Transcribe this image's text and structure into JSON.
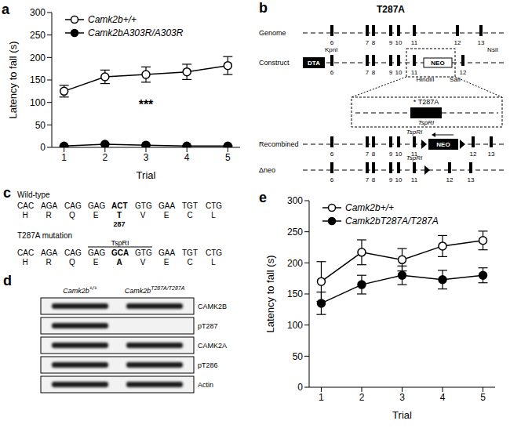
{
  "chart_data": [
    {
      "type": "line",
      "panel_label": "a",
      "xlabel": "Trial",
      "ylabel": "Latency to fall (s)",
      "x": [
        1,
        2,
        3,
        4,
        5
      ],
      "xlim": [
        0.7,
        5.3
      ],
      "xticks": [
        1,
        2,
        3,
        4,
        5
      ],
      "ylim": [
        0,
        300
      ],
      "yticks": [
        0,
        50,
        100,
        150,
        200,
        250,
        300
      ],
      "legend": "upper left",
      "series": [
        {
          "name": "Camk2b+/+",
          "color": "#000000",
          "marker": "open_circle",
          "values": [
            125,
            157,
            162,
            168,
            182
          ],
          "errors": [
            13,
            15,
            17,
            17,
            20
          ]
        },
        {
          "name": "Camk2bA303R/A303R",
          "color": "#000000",
          "marker": "filled_circle",
          "values": [
            3,
            7,
            5,
            3,
            3
          ],
          "errors": [
            1,
            1,
            1,
            1,
            1
          ]
        }
      ],
      "annotations": [
        {
          "text": "***",
          "x": 3,
          "y": 95
        }
      ]
    },
    {
      "type": "line",
      "panel_label": "e",
      "xlabel": "Trial",
      "ylabel": "Latency to fall (s)",
      "x": [
        1,
        2,
        3,
        4,
        5
      ],
      "xlim": [
        0.7,
        5.3
      ],
      "xticks": [
        1,
        2,
        3,
        4,
        5
      ],
      "ylim": [
        0,
        300
      ],
      "yticks": [
        0,
        50,
        100,
        150,
        200,
        250,
        300
      ],
      "legend": "upper left",
      "series": [
        {
          "name": "Camk2b+/+",
          "color": "#000000",
          "marker": "open_circle",
          "values": [
            170,
            217,
            205,
            227,
            236
          ],
          "errors": [
            32,
            20,
            18,
            17,
            15
          ]
        },
        {
          "name": "Camk2bT287A/T287A",
          "color": "#000000",
          "marker": "filled_circle",
          "values": [
            135,
            165,
            180,
            173,
            180
          ],
          "errors": [
            18,
            15,
            15,
            15,
            12
          ]
        }
      ],
      "annotations": []
    }
  ],
  "panel_b": {
    "panel_label": "b",
    "title": "T287A",
    "genome": {
      "label": "Genome",
      "exons": [
        "6",
        "7",
        "8",
        "9",
        "10",
        "11",
        "12",
        "13"
      ]
    },
    "construct": {
      "label": "Construct",
      "exons": [
        "6",
        "7",
        "8",
        "9",
        "10",
        "11",
        "12"
      ],
      "left_box": "DTA",
      "left_site": "KpnI",
      "right_site": "NsiI",
      "cassette": "NEO",
      "cassette_sites": [
        "HindIII",
        "SalI"
      ]
    },
    "inset": {
      "mutation": "* T287A",
      "site": "TspRI"
    },
    "recombined": {
      "label": "Recombined",
      "exons": [
        "6",
        "7",
        "8",
        "9",
        "10",
        "11",
        "12",
        "13"
      ],
      "site": "TspRI",
      "cassette": "NEO"
    },
    "deleted": {
      "label": "Δneo",
      "exons": [
        "6",
        "7",
        "8",
        "9",
        "10",
        "11",
        "12",
        "13"
      ],
      "site": "TspRI"
    }
  },
  "panel_c": {
    "panel_label": "c",
    "sequences": [
      {
        "label": "Wild-type",
        "codons": [
          "CAC",
          "AGA",
          "CAG",
          "GAG",
          "ACT",
          "GTG",
          "GAA",
          "TGT",
          "CTG"
        ],
        "amino_acids": [
          "H",
          "R",
          "Q",
          "E",
          "T",
          "V",
          "E",
          "C",
          "L"
        ],
        "highlight": "ACT",
        "position_label": "287"
      },
      {
        "label": "T287A mutation",
        "codons": [
          "CAC",
          "AGA",
          "CAG",
          "GAG",
          "GCA",
          "GTG",
          "GAA",
          "TGT",
          "CTG"
        ],
        "amino_acids": [
          "H",
          "R",
          "Q",
          "E",
          "A",
          "V",
          "E",
          "C",
          "L"
        ],
        "highlight": "GCA",
        "site": "TspRI"
      }
    ]
  },
  "panel_d": {
    "panel_label": "d",
    "columns": [
      {
        "gene": "Camk2b",
        "genotype": "+/+"
      },
      {
        "gene": "Camk2b",
        "genotype": "T287A/T287A"
      }
    ],
    "rows": [
      {
        "label": "CAMK2B",
        "bands": [
          true,
          true
        ]
      },
      {
        "label": "pT287",
        "bands": [
          true,
          false
        ]
      },
      {
        "label": "CAMK2A",
        "bands": [
          true,
          true
        ]
      },
      {
        "label": "pT286",
        "bands": [
          true,
          true
        ]
      },
      {
        "label": "Actin",
        "bands": [
          true,
          true
        ]
      }
    ]
  }
}
